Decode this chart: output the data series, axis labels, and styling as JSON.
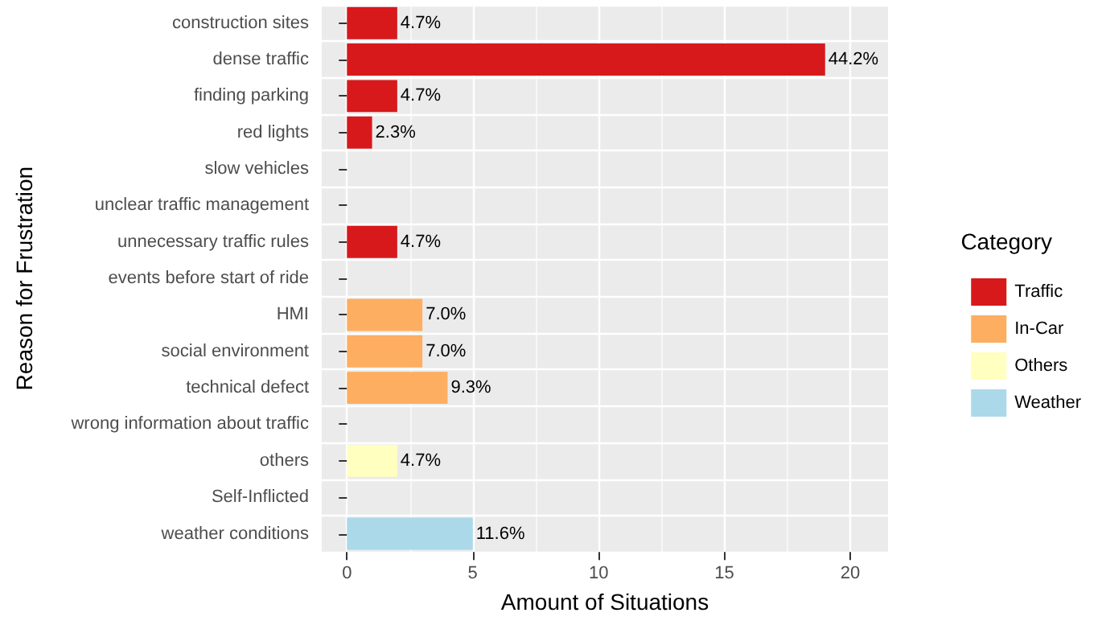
{
  "chart_data": {
    "type": "bar",
    "orientation": "horizontal",
    "stacked": true,
    "xlabel": "Amount of Situations",
    "ylabel": "Reason for Frustration",
    "legend_title": "Category",
    "legend": "right",
    "grid": true,
    "categories": [
      "construction sites",
      "dense traffic",
      "finding parking",
      "red lights",
      "slow vehicles",
      "unclear traffic management",
      "unnecessary traffic rules",
      "events before start of ride",
      "HMI",
      "social environment",
      "technical defect",
      "wrong information about traffic",
      "others",
      "Self-Inflicted",
      "weather conditions"
    ],
    "xlim": [
      -1,
      21.5
    ],
    "xticks": [
      0,
      5,
      10,
      15,
      20
    ],
    "annotations": [
      {
        "text": "4.7%",
        "x": 2,
        "y": "construction sites"
      },
      {
        "text": "44.2%",
        "x": 19,
        "y": "dense traffic"
      },
      {
        "text": "4.7%",
        "x": 2,
        "y": "finding parking"
      },
      {
        "text": "2.3%",
        "x": 1,
        "y": "red lights"
      },
      {
        "text": "4.7%",
        "x": 2,
        "y": "unnecessary traffic rules"
      },
      {
        "text": "7.0%",
        "x": 3,
        "y": "HMI"
      },
      {
        "text": "7.0%",
        "x": 3,
        "y": "social environment"
      },
      {
        "text": "9.3%",
        "x": 4,
        "y": "technical defect"
      },
      {
        "text": "4.7%",
        "x": 2,
        "y": "others"
      },
      {
        "text": "11.6%",
        "x": 5,
        "y": "weather conditions"
      }
    ],
    "series": [
      {
        "name": "Traffic",
        "color": "#d7191c",
        "values": [
          2,
          19,
          2,
          1,
          null,
          null,
          2,
          null,
          null,
          null,
          null,
          null,
          null,
          null,
          null
        ]
      },
      {
        "name": "In-Car",
        "color": "#fdae61",
        "values": [
          null,
          null,
          null,
          null,
          null,
          null,
          null,
          null,
          3,
          3,
          4,
          null,
          null,
          null,
          null
        ]
      },
      {
        "name": "Others",
        "color": "#ffffbf",
        "values": [
          null,
          null,
          null,
          null,
          null,
          null,
          null,
          null,
          null,
          null,
          null,
          null,
          2,
          null,
          null
        ]
      },
      {
        "name": "Weather",
        "color": "#abd9e9",
        "values": [
          null,
          null,
          null,
          null,
          null,
          null,
          null,
          null,
          null,
          null,
          null,
          null,
          null,
          null,
          5
        ]
      }
    ]
  }
}
